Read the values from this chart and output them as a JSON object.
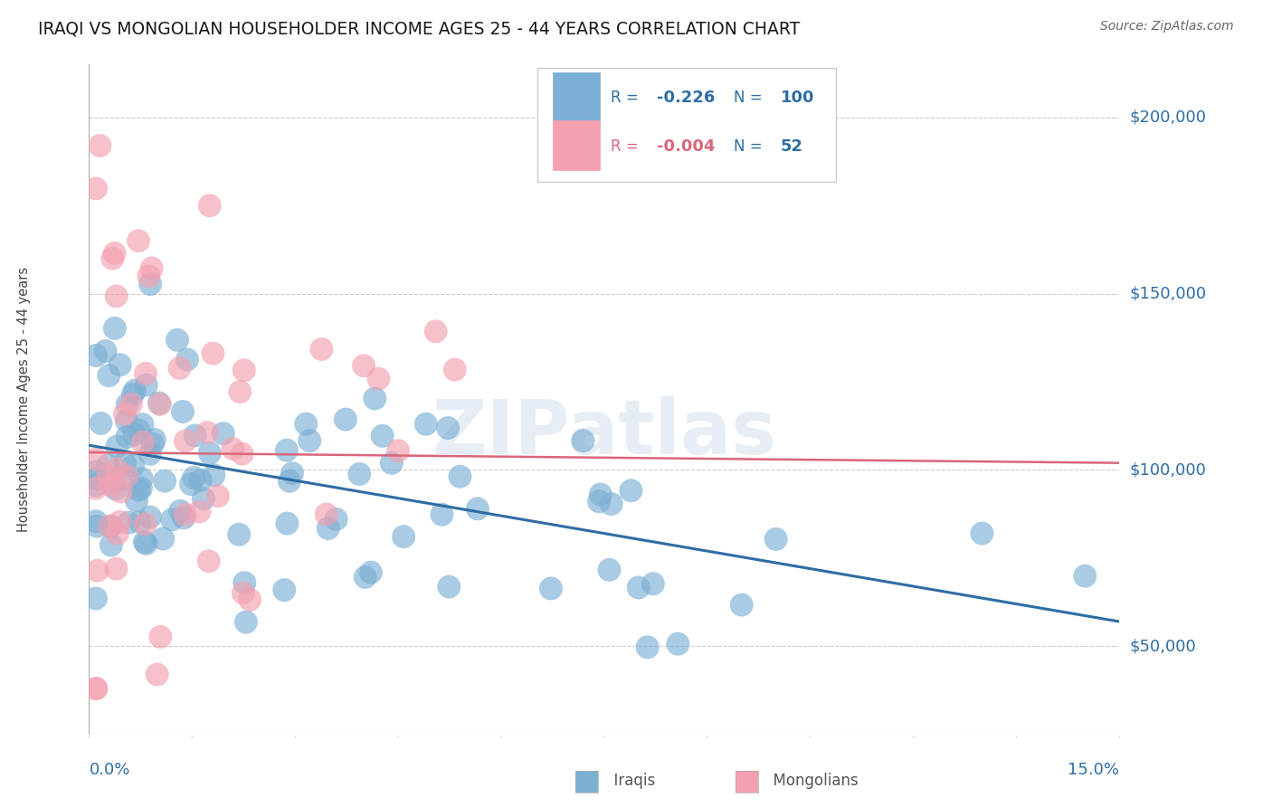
{
  "title": "IRAQI VS MONGOLIAN HOUSEHOLDER INCOME AGES 25 - 44 YEARS CORRELATION CHART",
  "source": "Source: ZipAtlas.com",
  "ylabel": "Householder Income Ages 25 - 44 years",
  "xlim": [
    0.0,
    0.15
  ],
  "ylim": [
    25000,
    215000
  ],
  "yticks": [
    50000,
    100000,
    150000,
    200000
  ],
  "ytick_labels": [
    "$50,000",
    "$100,000",
    "$150,000",
    "$200,000"
  ],
  "grid_color": "#cccccc",
  "background_color": "#ffffff",
  "iraqi_color": "#7bafd4",
  "mongolian_color": "#f4a0b0",
  "iraqi_line_color": "#2e6da4",
  "mongolian_line_color": "#d9667a",
  "legend_r_iraqi": "-0.226",
  "legend_n_iraqi": "100",
  "legend_r_mongolian": "-0.004",
  "legend_n_mongolian": "52"
}
